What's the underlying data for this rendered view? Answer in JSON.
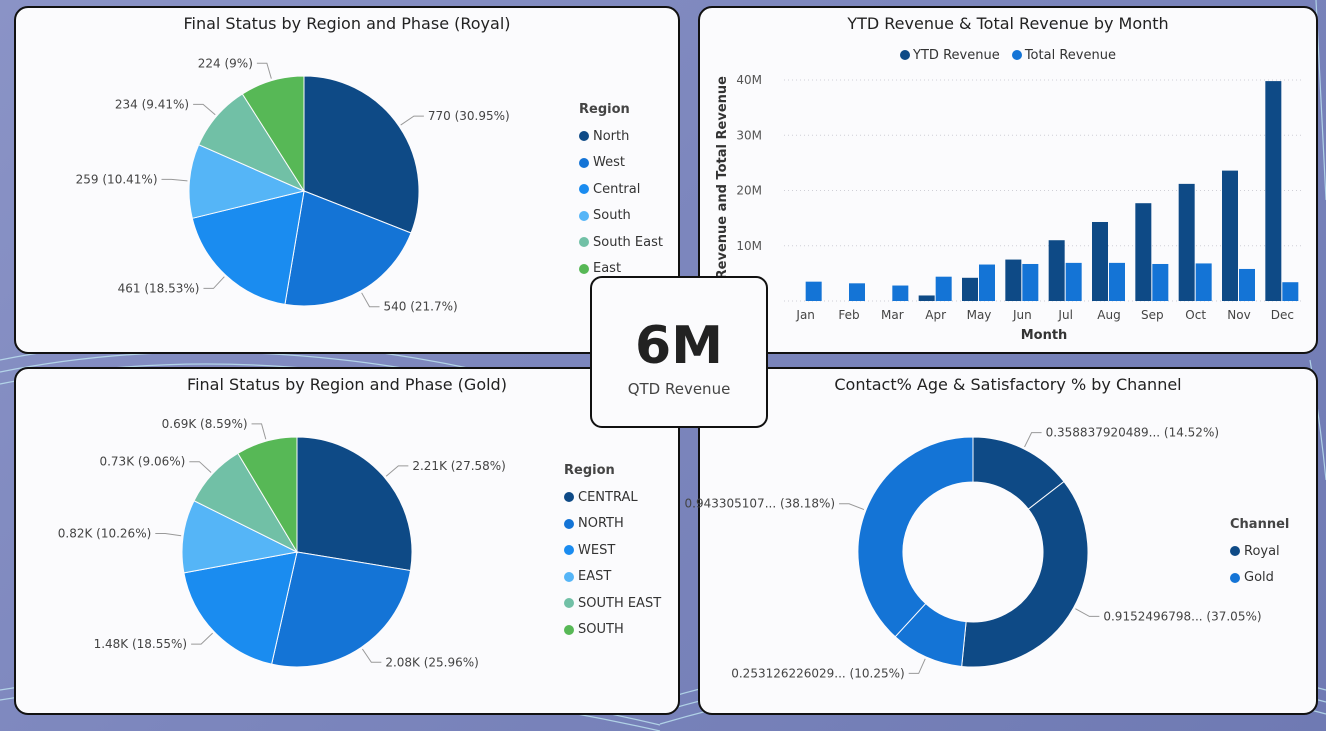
{
  "kpi": {
    "value": "6M",
    "label": "QTD Revenue"
  },
  "chart_data": [
    {
      "type": "pie",
      "title": "Final Status by Region and Phase (Royal)",
      "legend_title": "Region",
      "legend_position": "right",
      "slices": [
        {
          "name": "North",
          "value": 770,
          "label": "770 (30.95%)",
          "color": "#0e4a86"
        },
        {
          "name": "West",
          "value": 540,
          "label": "540 (21.7%)",
          "color": "#1474d6"
        },
        {
          "name": "Central",
          "value": 461,
          "label": "461 (18.53%)",
          "color": "#1a8cf0"
        },
        {
          "name": "South",
          "value": 259,
          "label": "259 (10.41%)",
          "color": "#55b5f7"
        },
        {
          "name": "South East",
          "value": 234,
          "label": "234 (9.41%)",
          "color": "#71c0a6"
        },
        {
          "name": "East",
          "value": 224,
          "label": "224 (9%)",
          "color": "#57b856"
        }
      ]
    },
    {
      "type": "bar",
      "title": "YTD Revenue & Total Revenue by Month",
      "xlabel": "Month",
      "ylabel": "YTD Revenue and Total Revenue",
      "legend_position": "top",
      "ylim": [
        0,
        40000000
      ],
      "yticks": [
        "10M",
        "20M",
        "30M",
        "40M"
      ],
      "categories": [
        "Jan",
        "Feb",
        "Mar",
        "Apr",
        "May",
        "Jun",
        "Jul",
        "Aug",
        "Sep",
        "Oct",
        "Nov",
        "Dec"
      ],
      "series": [
        {
          "name": "YTD Revenue",
          "color": "#0e4a86",
          "values": [
            0,
            0,
            0,
            1000000,
            4200000,
            7500000,
            11000000,
            14300000,
            17700000,
            21200000,
            23600000,
            39800000
          ]
        },
        {
          "name": "Total Revenue",
          "color": "#1474d6",
          "values": [
            3500000,
            3200000,
            2800000,
            4400000,
            6600000,
            6700000,
            6900000,
            6900000,
            6700000,
            6800000,
            5800000,
            3400000
          ]
        }
      ]
    },
    {
      "type": "pie",
      "title": "Final Status by Region and Phase (Gold)",
      "legend_title": "Region",
      "legend_position": "right",
      "slices": [
        {
          "name": "CENTRAL",
          "value": 27.58,
          "label": "2.21K (27.58%)",
          "color": "#0e4a86"
        },
        {
          "name": "NORTH",
          "value": 25.96,
          "label": "2.08K (25.96%)",
          "color": "#1474d6"
        },
        {
          "name": "WEST",
          "value": 18.55,
          "label": "1.48K (18.55%)",
          "color": "#1a8cf0"
        },
        {
          "name": "EAST",
          "value": 10.26,
          "label": "0.82K (10.26%)",
          "color": "#55b5f7"
        },
        {
          "name": "SOUTH EAST",
          "value": 9.06,
          "label": "0.73K (9.06%)",
          "color": "#71c0a6"
        },
        {
          "name": "SOUTH",
          "value": 8.59,
          "label": "0.69K (8.59%)",
          "color": "#57b856"
        }
      ]
    },
    {
      "type": "donut",
      "title": "Contact% Age & Satisfactory % by Channel",
      "legend_title": "Channel",
      "legend_position": "right",
      "legend": [
        {
          "name": "Royal",
          "color": "#0e4a86"
        },
        {
          "name": "Gold",
          "color": "#1474d6"
        }
      ],
      "slices": [
        {
          "value": 14.52,
          "label": "0.358837920489... (14.52%)",
          "color": "#0e4a86"
        },
        {
          "value": 37.05,
          "label": "0.9152496798... (37.05%)",
          "color": "#0e4a86"
        },
        {
          "value": 10.25,
          "label": "0.253126226029... (10.25%)",
          "color": "#1474d6"
        },
        {
          "value": 38.18,
          "label": "0.943305107... (38.18%)",
          "color": "#1474d6"
        }
      ]
    }
  ]
}
